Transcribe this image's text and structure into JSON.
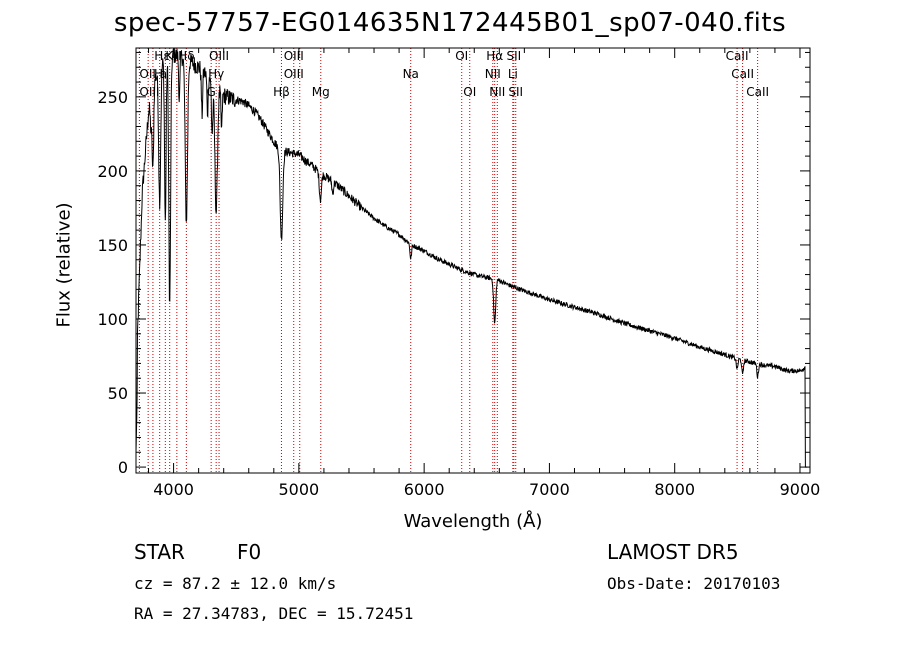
{
  "chart_data": {
    "type": "line",
    "title": "spec-57757-EG014635N172445B01_sp07-040.fits",
    "xlabel": "Wavelength (Å)",
    "ylabel": "Flux (relative)",
    "xlim": [
      3700,
      9080
    ],
    "ylim": [
      -4,
      283
    ],
    "x_ticks": [
      4000,
      5000,
      6000,
      7000,
      8000,
      9000
    ],
    "y_ticks": [
      0,
      50,
      100,
      150,
      200,
      250
    ],
    "grid": false,
    "line_color": "#000000",
    "marker_color": "#cc0000",
    "continuum": {
      "x": [
        3700,
        3750,
        3800,
        3850,
        3900,
        3950,
        4000,
        4050,
        4100,
        4150,
        4200,
        4250,
        4300,
        4350,
        4400,
        4450,
        4500,
        4550,
        4600,
        4650,
        4700,
        4750,
        4800,
        4850,
        4900,
        4950,
        5000,
        5050,
        5100,
        5150,
        5200,
        5300,
        5400,
        5500,
        5600,
        5700,
        5800,
        5900,
        6000,
        6100,
        6200,
        6300,
        6400,
        6500,
        6600,
        6700,
        6800,
        6900,
        7000,
        7200,
        7400,
        7600,
        7800,
        8000,
        8200,
        8400,
        8500,
        8600,
        8700,
        8800,
        8900,
        9000,
        9050
      ],
      "y": [
        60,
        185,
        240,
        262,
        272,
        276,
        278,
        278,
        275,
        273,
        270,
        266,
        262,
        256,
        251,
        249,
        248,
        247,
        244,
        240,
        234,
        227,
        220,
        214,
        213,
        212,
        211,
        207,
        204,
        200,
        197,
        191,
        183,
        175,
        168,
        162,
        157,
        150,
        146,
        141,
        137,
        133,
        130,
        128,
        126,
        122,
        119,
        116,
        113,
        108,
        103,
        97,
        92,
        87,
        81,
        76,
        73,
        71,
        69,
        68,
        65,
        65,
        68
      ]
    },
    "absorption_lines": [
      {
        "x": 3820,
        "depth": 20,
        "width": 6
      },
      {
        "x": 3835,
        "depth": 55,
        "width": 6
      },
      {
        "x": 3889,
        "depth": 90,
        "width": 8
      },
      {
        "x": 3934,
        "depth": 110,
        "width": 6
      },
      {
        "x": 3969,
        "depth": 170,
        "width": 7
      },
      {
        "x": 4046,
        "depth": 30,
        "width": 5
      },
      {
        "x": 4102,
        "depth": 110,
        "width": 9
      },
      {
        "x": 4227,
        "depth": 30,
        "width": 5
      },
      {
        "x": 4271,
        "depth": 25,
        "width": 5
      },
      {
        "x": 4308,
        "depth": 35,
        "width": 6
      },
      {
        "x": 4340,
        "depth": 85,
        "width": 10
      },
      {
        "x": 4383,
        "depth": 25,
        "width": 5
      },
      {
        "x": 4861,
        "depth": 60,
        "width": 10
      },
      {
        "x": 5172,
        "depth": 18,
        "width": 8
      },
      {
        "x": 5270,
        "depth": 8,
        "width": 6
      },
      {
        "x": 5893,
        "depth": 10,
        "width": 6
      },
      {
        "x": 6563,
        "depth": 30,
        "width": 8
      },
      {
        "x": 8498,
        "depth": 7,
        "width": 6
      },
      {
        "x": 8542,
        "depth": 10,
        "width": 6
      },
      {
        "x": 8662,
        "depth": 9,
        "width": 6
      }
    ],
    "annotations": [
      {
        "label": "Hε",
        "x": 3970,
        "row": 0,
        "align": "end"
      },
      {
        "label": "K",
        "x": 3934,
        "row": 0,
        "align": "start"
      },
      {
        "label": "Hδ",
        "x": 4102,
        "row": 0,
        "align": "middle"
      },
      {
        "label": "OIII",
        "x": 4363,
        "row": 0,
        "align": "middle"
      },
      {
        "label": "OIII",
        "x": 4959,
        "row": 0,
        "align": "middle"
      },
      {
        "label": "OI",
        "x": 6300,
        "row": 0,
        "align": "middle"
      },
      {
        "label": "Hα",
        "x": 6563,
        "row": 0,
        "align": "middle"
      },
      {
        "label": "SII",
        "x": 6716,
        "row": 0,
        "align": "middle"
      },
      {
        "label": "CaII",
        "x": 8498,
        "row": 0,
        "align": "middle"
      },
      {
        "label": "OII",
        "x": 3727,
        "row": 1,
        "align": "start"
      },
      {
        "label": "H",
        "x": 3880,
        "row": 1,
        "align": "middle"
      },
      {
        "label": "a",
        "x": 3919,
        "row": 1,
        "align": "middle"
      },
      {
        "label": "Hγ",
        "x": 4340,
        "row": 1,
        "align": "middle"
      },
      {
        "label": "OIII",
        "x": 4959,
        "row": 1,
        "align": "middle"
      },
      {
        "label": "Na",
        "x": 5893,
        "row": 1,
        "align": "middle"
      },
      {
        "label": "NII",
        "x": 6548,
        "row": 1,
        "align": "middle"
      },
      {
        "label": "Li",
        "x": 6708,
        "row": 1,
        "align": "middle"
      },
      {
        "label": "CaII",
        "x": 8542,
        "row": 1,
        "align": "middle"
      },
      {
        "label": "OIII",
        "x": 3727,
        "row": 2,
        "align": "start"
      },
      {
        "label": "G",
        "x": 4300,
        "row": 2,
        "align": "middle"
      },
      {
        "label": "Hβ",
        "x": 4861,
        "row": 2,
        "align": "middle"
      },
      {
        "label": "Mg",
        "x": 5175,
        "row": 2,
        "align": "middle"
      },
      {
        "label": "OI",
        "x": 6364,
        "row": 2,
        "align": "middle"
      },
      {
        "label": "NII",
        "x": 6584,
        "row": 2,
        "align": "middle"
      },
      {
        "label": "SII",
        "x": 6731,
        "row": 2,
        "align": "middle"
      },
      {
        "label": "CaII",
        "x": 8662,
        "row": 2,
        "align": "middle"
      }
    ],
    "marker_lines": [
      3727,
      3797,
      3835,
      3889,
      3934,
      3969,
      4026,
      4102,
      4300,
      4340,
      4363,
      4861,
      4959,
      5007,
      5175,
      5893,
      6300,
      6364,
      6548,
      6563,
      6584,
      6708,
      6716,
      6731,
      8498,
      8542,
      8662
    ]
  },
  "info": {
    "object_class": "STAR",
    "subclass": "F0",
    "survey": "LAMOST DR5",
    "redshift": "cz = 87.2 ± 12.0 km/s",
    "obs_date": "Obs-Date: 20170103",
    "coords": "RA =  27.34783, DEC =  15.72451"
  }
}
